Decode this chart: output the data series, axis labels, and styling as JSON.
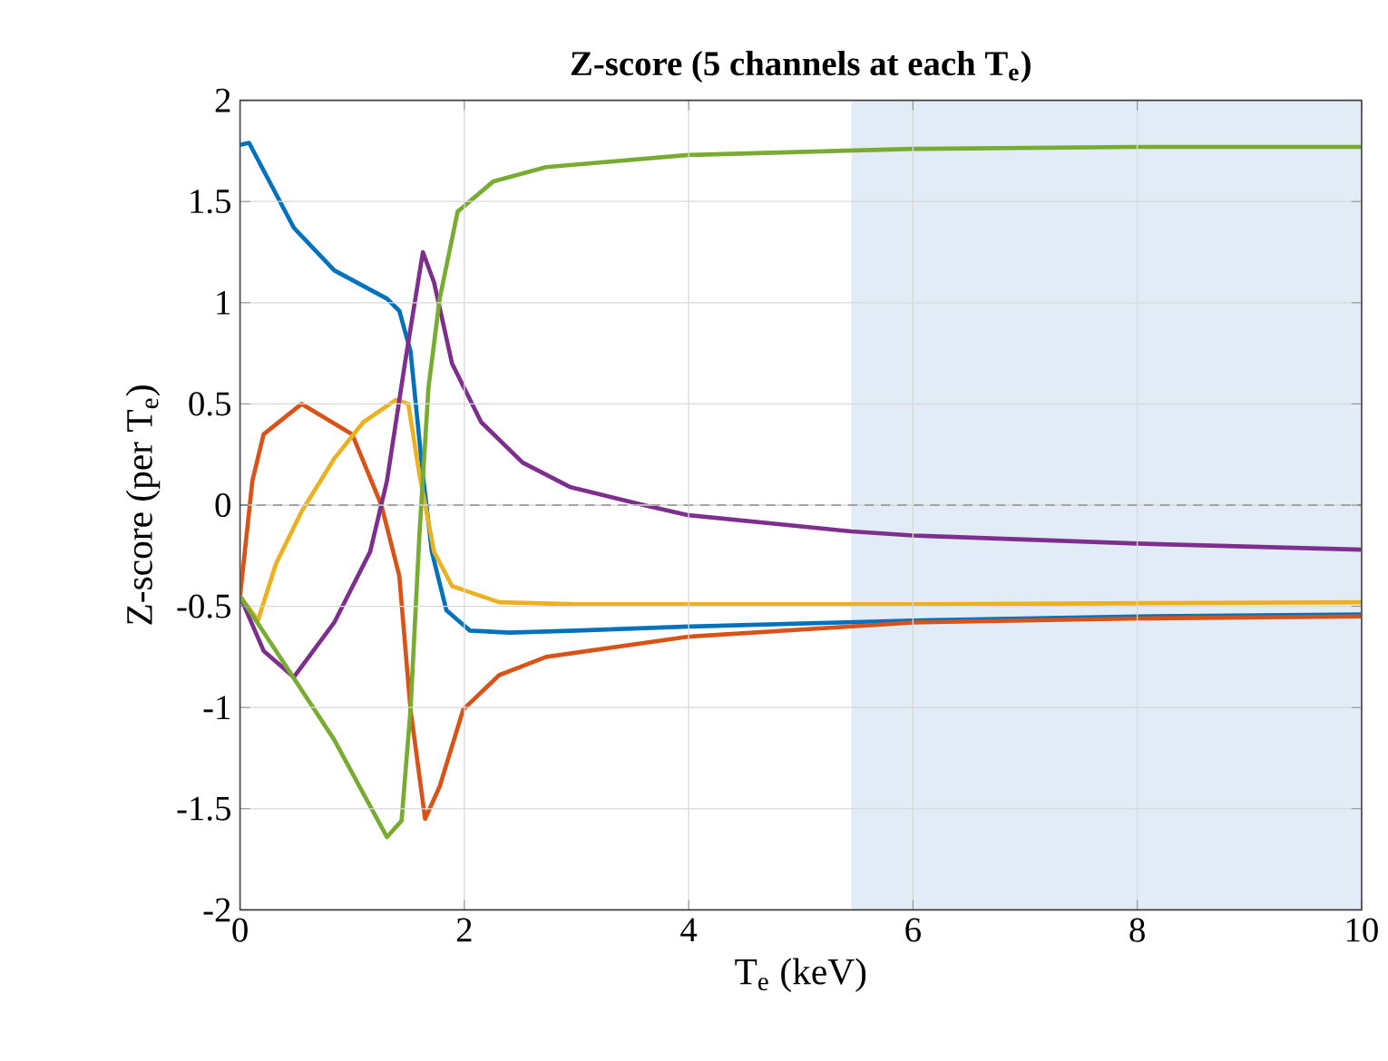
{
  "chart_data": {
    "type": "line",
    "title": "**Z-score (5 channels at each T$_{e}$)**",
    "xlabel": "T$_{e}$ (keV)",
    "ylabel": "Z-score (per T$_{e}$)",
    "xlim": [
      0,
      10
    ],
    "ylim": [
      -2,
      2
    ],
    "xticks": [
      0,
      2,
      4,
      6,
      8,
      10
    ],
    "yticks": [
      -2,
      -1.5,
      -1,
      -0.5,
      0,
      0.5,
      1,
      1.5,
      2
    ],
    "grid": true,
    "bands": [
      {
        "axis": "x",
        "from": 5.45,
        "to": 10,
        "color": "#e1ecf6"
      }
    ],
    "ref_lines": [
      {
        "axis": "y",
        "value": 0,
        "color": "#000000",
        "line_style": "dashed"
      }
    ],
    "series": [
      {
        "color": "#0072bd",
        "x": [
          0,
          0.08,
          0.48,
          0.84,
          1.31,
          1.42,
          1.52,
          1.63,
          1.71,
          1.84,
          2.05,
          2.4,
          3,
          4,
          6,
          8,
          10
        ],
        "values": [
          1.78,
          1.79,
          1.37,
          1.16,
          1.02,
          0.96,
          0.76,
          0.15,
          -0.23,
          -0.52,
          -0.62,
          -0.63,
          -0.62,
          -0.6,
          -0.57,
          -0.55,
          -0.54
        ]
      },
      {
        "color": "#d95319",
        "x": [
          0,
          0.11,
          0.21,
          0.55,
          1.0,
          1.26,
          1.42,
          1.52,
          1.65,
          1.78,
          1.99,
          2.31,
          2.73,
          4,
          6,
          8,
          10
        ],
        "values": [
          -0.45,
          0.12,
          0.35,
          0.5,
          0.35,
          0,
          -0.35,
          -1.01,
          -1.55,
          -1.39,
          -1.01,
          -0.84,
          -0.75,
          -0.65,
          -0.58,
          -0.56,
          -0.55
        ]
      },
      {
        "color": "#edb120",
        "x": [
          0,
          0.16,
          0.32,
          0.55,
          0.84,
          1.1,
          1.39,
          1.5,
          1.6,
          1.73,
          1.89,
          2.31,
          3,
          6,
          10
        ],
        "values": [
          -0.45,
          -0.57,
          -0.29,
          -0.03,
          0.23,
          0.41,
          0.52,
          0.5,
          0.15,
          -0.23,
          -0.4,
          -0.48,
          -0.49,
          -0.49,
          -0.48
        ]
      },
      {
        "color": "#7e2f8e",
        "x": [
          0,
          0.21,
          0.48,
          0.84,
          1.16,
          1.31,
          1.47,
          1.63,
          1.73,
          1.89,
          2.15,
          2.52,
          2.94,
          3.6,
          4,
          5.45,
          6,
          8,
          10
        ],
        "values": [
          -0.45,
          -0.72,
          -0.85,
          -0.58,
          -0.23,
          0.12,
          0.7,
          1.25,
          1.1,
          0.7,
          0.41,
          0.21,
          0.09,
          0,
          -0.05,
          -0.13,
          -0.15,
          -0.19,
          -0.22
        ]
      },
      {
        "color": "#77ac30",
        "x": [
          0,
          0.32,
          0.84,
          1.31,
          1.44,
          1.52,
          1.6,
          1.68,
          1.78,
          1.94,
          2.26,
          2.73,
          4,
          6,
          8,
          10
        ],
        "values": [
          -0.45,
          -0.72,
          -1.16,
          -1.64,
          -1.56,
          -1.01,
          -0.14,
          0.58,
          1.02,
          1.45,
          1.6,
          1.67,
          1.73,
          1.76,
          1.77,
          1.77
        ]
      }
    ]
  }
}
